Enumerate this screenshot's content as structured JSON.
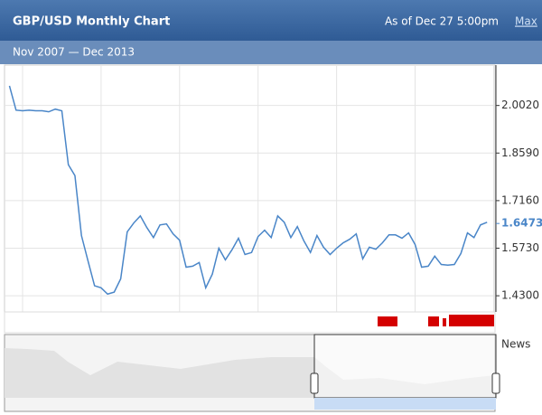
{
  "chart_data": {
    "type": "line",
    "title": "GBP/USD Monthly Chart",
    "as_of": "As of Dec 27 5:00pm",
    "zoom_label": "Max",
    "subtitle": "Nov 2007 — Dec 2013",
    "news_label": "News",
    "current_value": 1.6473,
    "x": [
      2007.833,
      2007.917,
      2008.0,
      2008.083,
      2008.167,
      2008.25,
      2008.333,
      2008.417,
      2008.5,
      2008.583,
      2008.667,
      2008.75,
      2008.833,
      2008.917,
      2009.0,
      2009.083,
      2009.167,
      2009.25,
      2009.333,
      2009.417,
      2009.5,
      2009.583,
      2009.667,
      2009.75,
      2009.833,
      2009.917,
      2010.0,
      2010.083,
      2010.167,
      2010.25,
      2010.333,
      2010.417,
      2010.5,
      2010.583,
      2010.667,
      2010.75,
      2010.833,
      2010.917,
      2011.0,
      2011.083,
      2011.167,
      2011.25,
      2011.333,
      2011.417,
      2011.5,
      2011.583,
      2011.667,
      2011.75,
      2011.833,
      2011.917,
      2012.0,
      2012.083,
      2012.167,
      2012.25,
      2012.333,
      2012.417,
      2012.5,
      2012.583,
      2012.667,
      2012.75,
      2012.833,
      2012.917,
      2013.0,
      2013.083,
      2013.167,
      2013.25,
      2013.333,
      2013.417,
      2013.5,
      2013.583,
      2013.667,
      2013.75,
      2013.833,
      2013.917
    ],
    "series": [
      {
        "name": "GBP/USD",
        "color": "#4a86c8",
        "values": [
          2.061,
          1.988,
          1.986,
          1.988,
          1.986,
          1.986,
          1.983,
          1.991,
          1.986,
          1.824,
          1.791,
          1.611,
          1.535,
          1.46,
          1.454,
          1.435,
          1.441,
          1.481,
          1.622,
          1.649,
          1.67,
          1.635,
          1.605,
          1.643,
          1.646,
          1.616,
          1.597,
          1.516,
          1.519,
          1.53,
          1.454,
          1.495,
          1.573,
          1.538,
          1.568,
          1.603,
          1.554,
          1.56,
          1.608,
          1.627,
          1.605,
          1.67,
          1.651,
          1.605,
          1.638,
          1.595,
          1.56,
          1.611,
          1.576,
          1.554,
          1.573,
          1.589,
          1.6,
          1.616,
          1.541,
          1.576,
          1.57,
          1.589,
          1.613,
          1.613,
          1.603,
          1.619,
          1.584,
          1.516,
          1.519,
          1.549,
          1.524,
          1.522,
          1.524,
          1.557,
          1.619,
          1.605,
          1.643,
          1.651
        ]
      }
    ],
    "xlim": [
      2007.77,
      2014.018
    ],
    "xticks": [
      2008,
      2009,
      2010,
      2011,
      2012,
      2013,
      2014
    ],
    "ylim": [
      1.3814,
      2.1234
    ],
    "yticks": [
      {
        "value": 1.43,
        "label": "1.4300"
      },
      {
        "value": 1.573,
        "label": "1.5730"
      },
      {
        "value": 1.716,
        "label": "1.7160"
      },
      {
        "value": 1.859,
        "label": "1.8590"
      },
      {
        "value": 2.002,
        "label": "2.0020"
      }
    ],
    "grid": true
  }
}
